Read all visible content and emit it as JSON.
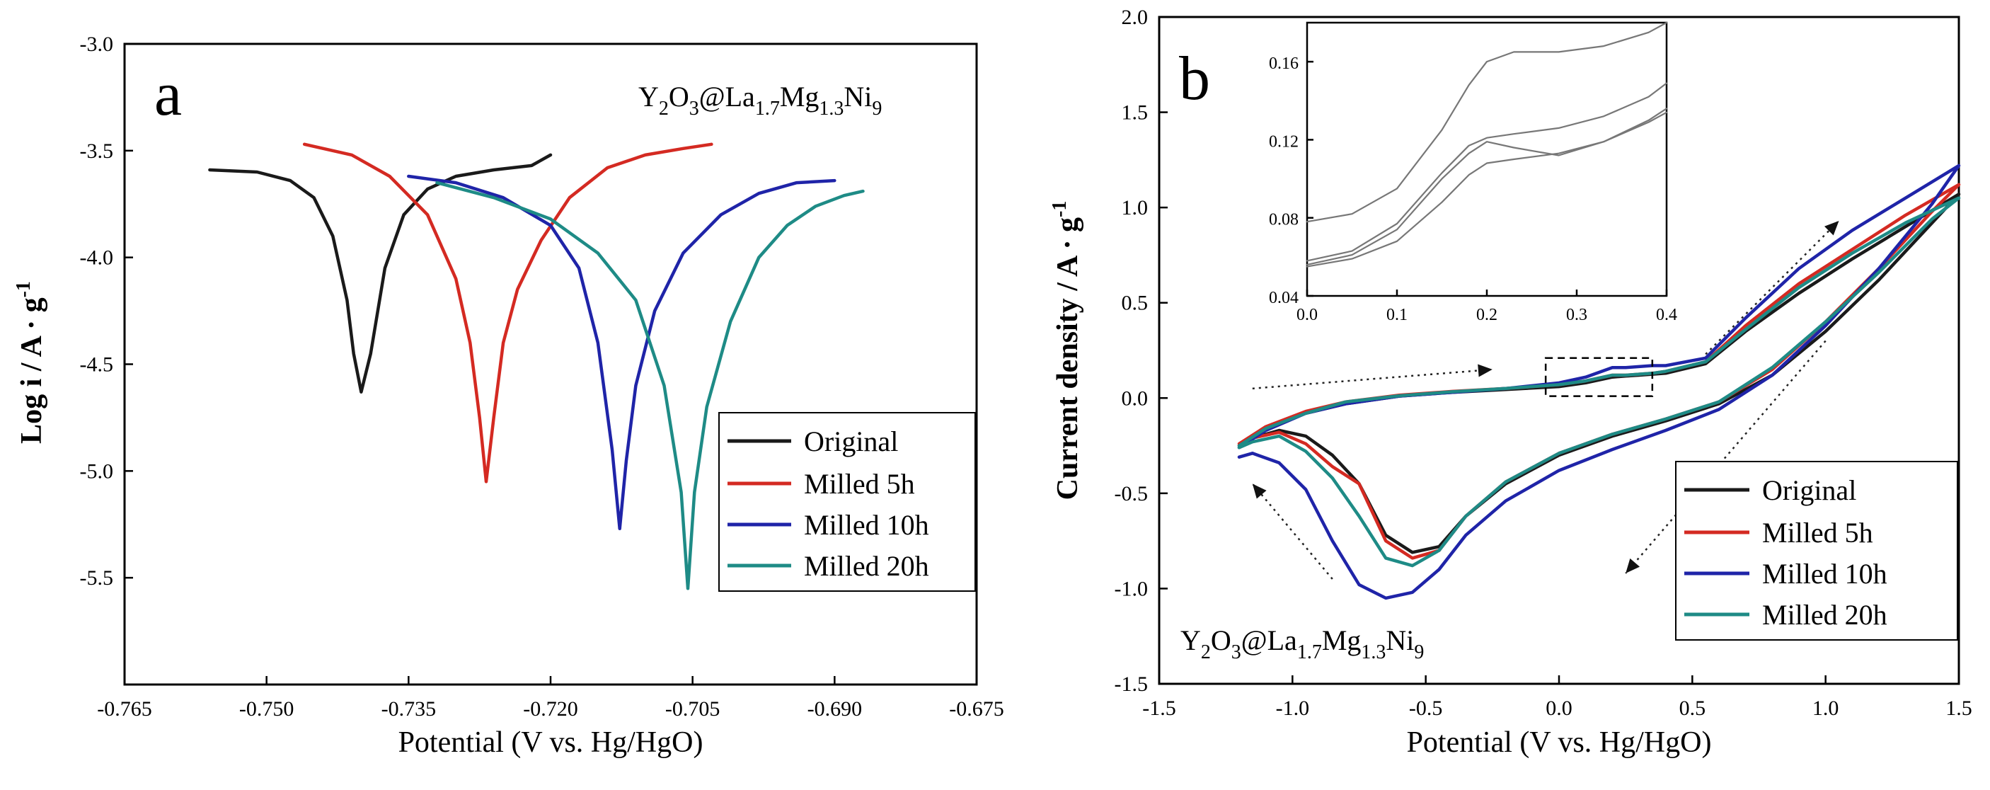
{
  "figure": {
    "colors": {
      "original": "#1a1a1a",
      "milled5": "#d42a22",
      "milled10": "#1f24a8",
      "milled20": "#1e8b86"
    }
  },
  "chart_data": [
    {
      "type": "line",
      "panel_label": "a",
      "sample": {
        "base": "Y",
        "s1": "2",
        "mid1": "O",
        "s2": "3",
        "mid2": "@La",
        "s3": "1.7",
        "mid3": "Mg",
        "s4": "1.3",
        "mid4": "Ni",
        "s5": "9"
      },
      "xlabel": "Potential (V vs. Hg/HgO)",
      "ylabel": {
        "main": "Log i  / A · g",
        "sup": "-1"
      },
      "xlim": [
        -0.765,
        -0.675
      ],
      "ylim": [
        -6.0,
        -3.0
      ],
      "xticks": [
        "-0.765",
        "-0.750",
        "-0.735",
        "-0.720",
        "-0.705",
        "-0.690",
        "-0.675"
      ],
      "yticks": [
        "-3.0",
        "-3.5",
        "-4.0",
        "-4.5",
        "-5.0",
        "-5.5"
      ],
      "legend": [
        "Original",
        "Milled 5h",
        "Milled 10h",
        "Milled 20h"
      ],
      "series": [
        {
          "name": "Original",
          "color_key": "original",
          "x": [
            -0.756,
            -0.751,
            -0.7475,
            -0.745,
            -0.743,
            -0.7415,
            -0.7408,
            -0.74,
            -0.739,
            -0.7375,
            -0.7355,
            -0.733,
            -0.73,
            -0.726,
            -0.722,
            -0.72
          ],
          "y": [
            -3.59,
            -3.6,
            -3.64,
            -3.72,
            -3.9,
            -4.2,
            -4.45,
            -4.63,
            -4.45,
            -4.05,
            -3.8,
            -3.68,
            -3.62,
            -3.59,
            -3.57,
            -3.52
          ]
        },
        {
          "name": "Milled 5h",
          "color_key": "milled5",
          "x": [
            -0.746,
            -0.741,
            -0.737,
            -0.733,
            -0.73,
            -0.7285,
            -0.7275,
            -0.7268,
            -0.726,
            -0.725,
            -0.7235,
            -0.721,
            -0.718,
            -0.714,
            -0.71,
            -0.706,
            -0.703
          ],
          "y": [
            -3.47,
            -3.52,
            -3.62,
            -3.8,
            -4.1,
            -4.4,
            -4.75,
            -5.05,
            -4.75,
            -4.4,
            -4.15,
            -3.92,
            -3.72,
            -3.58,
            -3.52,
            -3.49,
            -3.47
          ]
        },
        {
          "name": "Milled 10h",
          "color_key": "milled10",
          "x": [
            -0.735,
            -0.73,
            -0.725,
            -0.72,
            -0.717,
            -0.715,
            -0.7135,
            -0.7127,
            -0.712,
            -0.711,
            -0.709,
            -0.706,
            -0.702,
            -0.698,
            -0.694,
            -0.69
          ],
          "y": [
            -3.62,
            -3.65,
            -3.72,
            -3.85,
            -4.05,
            -4.4,
            -4.9,
            -5.27,
            -4.95,
            -4.6,
            -4.25,
            -3.98,
            -3.8,
            -3.7,
            -3.65,
            -3.64
          ]
        },
        {
          "name": "Milled 20h",
          "color_key": "milled20",
          "x": [
            -0.732,
            -0.726,
            -0.72,
            -0.715,
            -0.711,
            -0.708,
            -0.7062,
            -0.7055,
            -0.7048,
            -0.7035,
            -0.701,
            -0.698,
            -0.695,
            -0.692,
            -0.689,
            -0.687
          ],
          "y": [
            -3.65,
            -3.72,
            -3.82,
            -3.98,
            -4.2,
            -4.6,
            -5.1,
            -5.55,
            -5.1,
            -4.7,
            -4.3,
            -4.0,
            -3.85,
            -3.76,
            -3.71,
            -3.69
          ]
        }
      ]
    },
    {
      "type": "line",
      "panel_label": "b",
      "sample": {
        "base": "Y",
        "s1": "2",
        "mid1": "O",
        "s2": "3",
        "mid2": "@La",
        "s3": "1.7",
        "mid3": "Mg",
        "s4": "1.3",
        "mid4": "Ni",
        "s5": "9"
      },
      "xlabel": "Potential (V vs. Hg/HgO)",
      "ylabel": {
        "main": "Current density / A · g",
        "sup": "-1"
      },
      "xlim": [
        -1.5,
        1.5
      ],
      "ylim": [
        -1.5,
        2.0
      ],
      "xticks": [
        "-1.5",
        "-1.0",
        "-0.5",
        "0.0",
        "0.5",
        "1.0",
        "1.5"
      ],
      "yticks": [
        "-1.5",
        "-1.0",
        "-0.5",
        "0.0",
        "0.5",
        "1.0",
        "1.5",
        "2.0"
      ],
      "legend": [
        "Original",
        "Milled 5h",
        "Milled 10h",
        "Milled 20h"
      ],
      "series": [
        {
          "name": "Original",
          "color_key": "original",
          "x": [
            -1.2,
            -1.1,
            -0.95,
            -0.8,
            -0.6,
            -0.4,
            -0.2,
            0.0,
            0.1,
            0.2,
            0.25,
            0.3,
            0.35,
            0.4,
            0.55,
            0.7,
            0.9,
            1.1,
            1.3,
            1.5,
            1.4,
            1.2,
            1.0,
            0.8,
            0.6,
            0.4,
            0.2,
            0.0,
            -0.2,
            -0.35,
            -0.45,
            -0.55,
            -0.65,
            -0.75,
            -0.85,
            -0.95,
            -1.05,
            -1.15,
            -1.2
          ],
          "y": [
            -0.25,
            -0.16,
            -0.08,
            -0.03,
            0.01,
            0.03,
            0.045,
            0.06,
            0.08,
            0.11,
            0.115,
            0.12,
            0.125,
            0.13,
            0.18,
            0.35,
            0.55,
            0.73,
            0.9,
            1.07,
            0.92,
            0.62,
            0.35,
            0.12,
            -0.03,
            -0.12,
            -0.2,
            -0.3,
            -0.45,
            -0.62,
            -0.78,
            -0.81,
            -0.72,
            -0.45,
            -0.3,
            -0.2,
            -0.17,
            -0.21,
            -0.25
          ]
        },
        {
          "name": "Milled 5h",
          "color_key": "milled5",
          "x": [
            -1.2,
            -1.1,
            -0.95,
            -0.8,
            -0.6,
            -0.4,
            -0.2,
            0.0,
            0.1,
            0.2,
            0.25,
            0.3,
            0.35,
            0.4,
            0.55,
            0.7,
            0.9,
            1.1,
            1.3,
            1.5,
            1.4,
            1.2,
            1.0,
            0.8,
            0.6,
            0.4,
            0.2,
            0.0,
            -0.2,
            -0.35,
            -0.45,
            -0.55,
            -0.65,
            -0.75,
            -0.85,
            -0.95,
            -1.05,
            -1.15,
            -1.2
          ],
          "y": [
            -0.24,
            -0.15,
            -0.07,
            -0.02,
            0.015,
            0.035,
            0.05,
            0.07,
            0.09,
            0.12,
            0.12,
            0.125,
            0.13,
            0.14,
            0.19,
            0.38,
            0.6,
            0.78,
            0.96,
            1.12,
            0.98,
            0.68,
            0.4,
            0.15,
            -0.02,
            -0.11,
            -0.19,
            -0.29,
            -0.44,
            -0.62,
            -0.8,
            -0.84,
            -0.75,
            -0.45,
            -0.36,
            -0.24,
            -0.18,
            -0.21,
            -0.24
          ]
        },
        {
          "name": "Milled 10h",
          "color_key": "milled10",
          "x": [
            -1.2,
            -1.1,
            -0.95,
            -0.8,
            -0.6,
            -0.4,
            -0.2,
            0.0,
            0.1,
            0.2,
            0.25,
            0.3,
            0.35,
            0.4,
            0.55,
            0.7,
            0.9,
            1.1,
            1.3,
            1.5,
            1.4,
            1.2,
            1.0,
            0.8,
            0.6,
            0.4,
            0.2,
            0.0,
            -0.2,
            -0.35,
            -0.45,
            -0.55,
            -0.65,
            -0.75,
            -0.85,
            -0.95,
            -1.05,
            -1.15,
            -1.2
          ],
          "y": [
            -0.26,
            -0.17,
            -0.08,
            -0.03,
            0.01,
            0.03,
            0.05,
            0.08,
            0.11,
            0.16,
            0.16,
            0.165,
            0.17,
            0.17,
            0.21,
            0.42,
            0.68,
            0.88,
            1.05,
            1.22,
            1.02,
            0.68,
            0.38,
            0.12,
            -0.06,
            -0.17,
            -0.27,
            -0.38,
            -0.54,
            -0.72,
            -0.9,
            -1.02,
            -1.05,
            -0.98,
            -0.75,
            -0.48,
            -0.34,
            -0.29,
            -0.31
          ]
        },
        {
          "name": "Milled 20h",
          "color_key": "milled20",
          "x": [
            -1.2,
            -1.1,
            -0.95,
            -0.8,
            -0.6,
            -0.4,
            -0.2,
            0.0,
            0.1,
            0.2,
            0.25,
            0.3,
            0.35,
            0.4,
            0.55,
            0.7,
            0.9,
            1.1,
            1.3,
            1.5,
            1.4,
            1.2,
            1.0,
            0.8,
            0.6,
            0.4,
            0.2,
            0.0,
            -0.2,
            -0.35,
            -0.45,
            -0.55,
            -0.65,
            -0.75,
            -0.85,
            -0.95,
            -1.05,
            -1.15,
            -1.2
          ],
          "y": [
            -0.25,
            -0.16,
            -0.08,
            -0.02,
            0.012,
            0.033,
            0.05,
            0.07,
            0.09,
            0.12,
            0.12,
            0.125,
            0.13,
            0.14,
            0.19,
            0.36,
            0.58,
            0.76,
            0.92,
            1.05,
            0.94,
            0.66,
            0.4,
            0.16,
            -0.02,
            -0.11,
            -0.19,
            -0.29,
            -0.44,
            -0.62,
            -0.8,
            -0.88,
            -0.84,
            -0.62,
            -0.42,
            -0.28,
            -0.2,
            -0.23,
            -0.26
          ]
        }
      ],
      "annotations": {
        "box_x": [
          -0.05,
          0.35
        ],
        "box_y": [
          0.01,
          0.21
        ],
        "arrows": [
          {
            "from": [
              -1.15,
              0.05
            ],
            "to": [
              -0.25,
              0.15
            ]
          },
          {
            "from": [
              0.55,
              0.23
            ],
            "to": [
              1.05,
              0.93
            ]
          },
          {
            "from": [
              1.0,
              0.3
            ],
            "to": [
              0.25,
              -0.92
            ]
          },
          {
            "from": [
              -0.85,
              -0.95
            ],
            "to": [
              -1.15,
              -0.45
            ]
          }
        ]
      },
      "inset": {
        "type": "line",
        "xlim": [
          0.0,
          0.4
        ],
        "ylim": [
          0.04,
          0.18
        ],
        "xticks": [
          "0.0",
          "0.1",
          "0.2",
          "0.3",
          "0.4"
        ],
        "yticks": [
          "0.04",
          "0.08",
          "0.12",
          "0.16"
        ],
        "series": [
          {
            "x": [
              0.0,
              0.05,
              0.1,
              0.15,
              0.18,
              0.2,
              0.23,
              0.28,
              0.33,
              0.38,
              0.4
            ],
            "y": [
              0.078,
              0.082,
              0.095,
              0.125,
              0.148,
              0.16,
              0.165,
              0.165,
              0.168,
              0.175,
              0.18
            ]
          },
          {
            "x": [
              0.0,
              0.05,
              0.1,
              0.15,
              0.18,
              0.2,
              0.23,
              0.28,
              0.33,
              0.38,
              0.4
            ],
            "y": [
              0.058,
              0.063,
              0.077,
              0.103,
              0.117,
              0.121,
              0.123,
              0.126,
              0.132,
              0.142,
              0.149
            ]
          },
          {
            "x": [
              0.0,
              0.05,
              0.1,
              0.15,
              0.18,
              0.2,
              0.23,
              0.28,
              0.33,
              0.38,
              0.4
            ],
            "y": [
              0.056,
              0.061,
              0.074,
              0.1,
              0.113,
              0.119,
              0.116,
              0.112,
              0.119,
              0.13,
              0.136
            ]
          },
          {
            "x": [
              0.0,
              0.05,
              0.1,
              0.15,
              0.18,
              0.2,
              0.23,
              0.28,
              0.33,
              0.38,
              0.4
            ],
            "y": [
              0.055,
              0.059,
              0.068,
              0.088,
              0.102,
              0.108,
              0.11,
              0.113,
              0.119,
              0.129,
              0.134
            ]
          }
        ]
      }
    }
  ]
}
